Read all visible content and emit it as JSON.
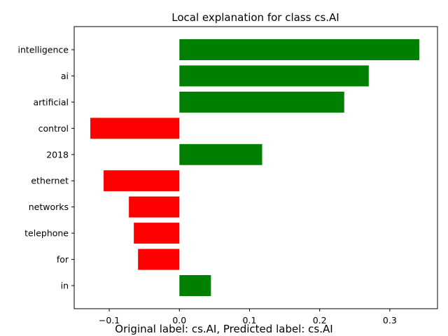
{
  "chart_data": {
    "type": "bar",
    "orientation": "horizontal",
    "title": "Local explanation for class cs.AI",
    "caption": "Original label: cs.AI, Predicted label: cs.AI",
    "categories": [
      "intelligence",
      "ai",
      "artificial",
      "control",
      "2018",
      "ethernet",
      "networks",
      "telephone",
      "for",
      "in"
    ],
    "values": [
      0.342,
      0.27,
      0.235,
      -0.127,
      0.118,
      -0.108,
      -0.072,
      -0.065,
      -0.059,
      0.045
    ],
    "xlim": [
      -0.15,
      0.368
    ],
    "xticks": [
      -0.1,
      0.0,
      0.1,
      0.2,
      0.3
    ],
    "xtick_labels": [
      "−0.1",
      "0.0",
      "0.1",
      "0.2",
      "0.3"
    ],
    "grid": false,
    "colors": {
      "positive": "#008000",
      "negative": "#ff0000",
      "axis": "#000000"
    }
  }
}
